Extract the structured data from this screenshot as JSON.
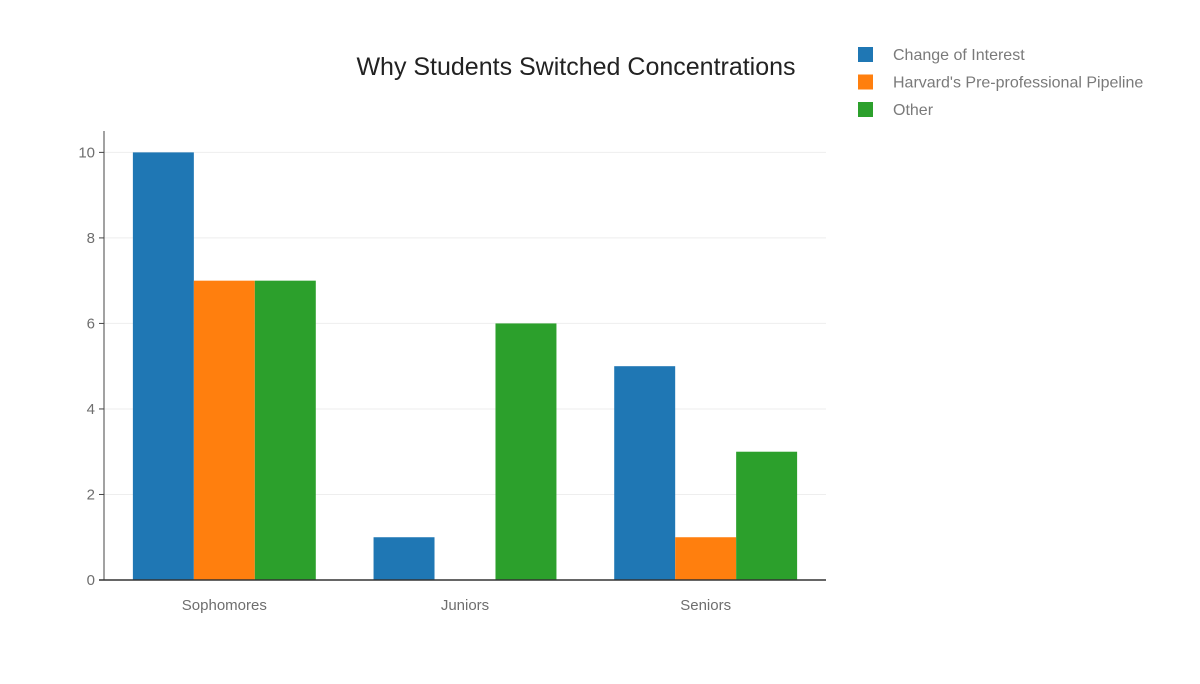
{
  "chart_data": {
    "type": "bar",
    "title": "Why Students Switched Concentrations",
    "xlabel": "",
    "ylabel": "",
    "categories": [
      "Sophomores",
      "Juniors",
      "Seniors"
    ],
    "series": [
      {
        "name": "Change of Interest",
        "color": "#1f77b4",
        "values": [
          10,
          1,
          5
        ]
      },
      {
        "name": "Harvard's Pre-professional Pipeline",
        "color": "#ff7f0e",
        "values": [
          7,
          0,
          1
        ]
      },
      {
        "name": "Other",
        "color": "#2ca02c",
        "values": [
          7,
          6,
          3
        ]
      }
    ],
    "ylim": [
      0,
      10.5
    ],
    "yticks": [
      0,
      2,
      4,
      6,
      8,
      10
    ],
    "grid": true,
    "legend_position": "top-right"
  }
}
